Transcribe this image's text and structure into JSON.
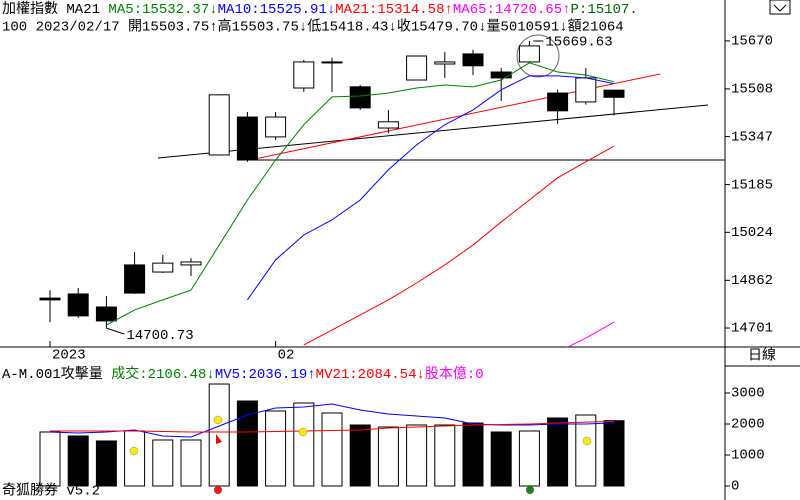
{
  "chart_data": [
    {
      "type": "candlestick",
      "legend": [
        {
          "text": "加權指數 MA21 ",
          "color": "#000000"
        },
        {
          "text": "MA5:15532.37↓",
          "color": "#008000"
        },
        {
          "text": "MA10:15525.91↓",
          "color": "#0000ff"
        },
        {
          "text": "MA21:15314.58↑",
          "color": "#ff0000"
        },
        {
          "text": "MA65:14720.65↑",
          "color": "#ff00ff"
        },
        {
          "text": "P:15107.",
          "color": "#006400"
        }
      ],
      "info": "100 2023/02/17 開15503.75↑高15503.75↓低15418.43↓收15479.70↓量5010591↓額21064",
      "categories": [
        "2023",
        null,
        null,
        null,
        null,
        null,
        null,
        null,
        "02",
        null,
        null,
        null,
        null,
        null,
        null,
        null,
        null,
        null,
        null,
        null,
        null
      ],
      "open": [
        14802,
        14816,
        14772,
        14914,
        14890,
        14914,
        15285,
        15413,
        15346,
        15511,
        15596,
        15515,
        15376,
        15538,
        15592,
        15626,
        15565,
        15599,
        15494,
        15464,
        15503.75
      ],
      "high": [
        14829,
        14836,
        14809,
        14958,
        14948,
        14937,
        15488,
        15430,
        15430,
        15606,
        15613,
        15521,
        15437,
        15619,
        15633,
        15640,
        15579,
        15669.63,
        15505,
        15579,
        15503.75
      ],
      "low": [
        14721,
        14735,
        14700.73,
        14816,
        14887,
        14877,
        15285,
        15262,
        15336,
        15498,
        15498,
        15437,
        15359,
        15538,
        15545,
        15555,
        15467,
        15599,
        15390,
        15455,
        15418.43
      ],
      "close": [
        14796,
        14742,
        14725,
        14819,
        14920,
        14924,
        15488,
        15268,
        15413,
        15599,
        15599,
        15444,
        15397,
        15619,
        15599,
        15586,
        15545,
        15653,
        15434,
        15545,
        15479.7
      ],
      "series": [
        {
          "color": "#008000",
          "values": [
            null,
            null,
            14711,
            14762,
            14796,
            14829,
            14981,
            15133,
            15268,
            15387,
            15481,
            15484,
            15494,
            15511,
            15521,
            15515,
            15538,
            15596,
            15565,
            15555,
            15532.37
          ]
        },
        {
          "color": "#0000ff",
          "values": [
            null,
            null,
            null,
            null,
            null,
            null,
            null,
            14796,
            14931,
            15015,
            15066,
            15133,
            15235,
            15319,
            15387,
            15437,
            15505,
            15552,
            15552,
            15545,
            15525.91
          ]
        },
        {
          "color": "#ff0000",
          "values": [
            null,
            null,
            null,
            null,
            null,
            null,
            null,
            null,
            null,
            14644,
            14694,
            14745,
            14796,
            14853,
            14914,
            14981,
            15059,
            15133,
            15208,
            15262,
            15314.58
          ]
        },
        {
          "color": "#ff00ff",
          "values": [
            null,
            null,
            null,
            null,
            null,
            null,
            null,
            null,
            null,
            null,
            null,
            null,
            null,
            null,
            null,
            null,
            null,
            null,
            14620,
            14667,
            14720.65
          ]
        }
      ],
      "ylim": [
        14637,
        15808
      ],
      "yticks": [
        15670,
        15508,
        15347,
        15185,
        15024,
        14862,
        14701
      ]
    },
    {
      "type": "bar",
      "legend": [
        {
          "text": "A-M.001攻擊量 ",
          "color": "#000000"
        },
        {
          "text": "成交:2106.48↓",
          "color": "#008000"
        },
        {
          "text": "MV5:2036.19↑",
          "color": "#0000ff"
        },
        {
          "text": "MV21:2084.54↓",
          "color": "#ff0000"
        },
        {
          "text": "股本億:0",
          "color": "#ff00ff"
        }
      ],
      "values": [
        1742,
        1613,
        1452,
        1774,
        1484,
        1484,
        3290,
        2742,
        2419,
        2677,
        2355,
        1968,
        1903,
        1968,
        1968,
        2032,
        1742,
        1774,
        2194,
        2290,
        2106.48
      ],
      "colors": [
        "#ffffff",
        "#000000",
        "#000000",
        "#ffffff",
        "#ffffff",
        "#ffffff",
        "#ffffff",
        "#000000",
        "#ffffff",
        "#ffffff",
        "#ffffff",
        "#000000",
        "#ffffff",
        "#ffffff",
        "#ffffff",
        "#000000",
        "#000000",
        "#ffffff",
        "#000000",
        "#ffffff",
        "#000000"
      ],
      "series": [
        {
          "color": "#0000ff",
          "values": [
            1742,
            1710,
            1742,
            1806,
            1613,
            1581,
            1935,
            2290,
            2516,
            2548,
            2645,
            2452,
            2323,
            2258,
            2194,
            2000,
            1968,
            1968,
            2000,
            2000,
            2036.19
          ]
        },
        {
          "color": "#ff0000",
          "values": [
            1774,
            1774,
            1774,
            1774,
            1758,
            1742,
            1742,
            1742,
            1758,
            1774,
            1790,
            1806,
            1870,
            1903,
            1935,
            1968,
            1985,
            2000,
            2032,
            2060,
            2084.54
          ]
        }
      ],
      "ylim": [
        -323,
        3871
      ],
      "yticks": [
        0,
        1000,
        2000,
        3000
      ]
    }
  ],
  "period": "日線",
  "footer": "奇狐勝券 v5.2"
}
